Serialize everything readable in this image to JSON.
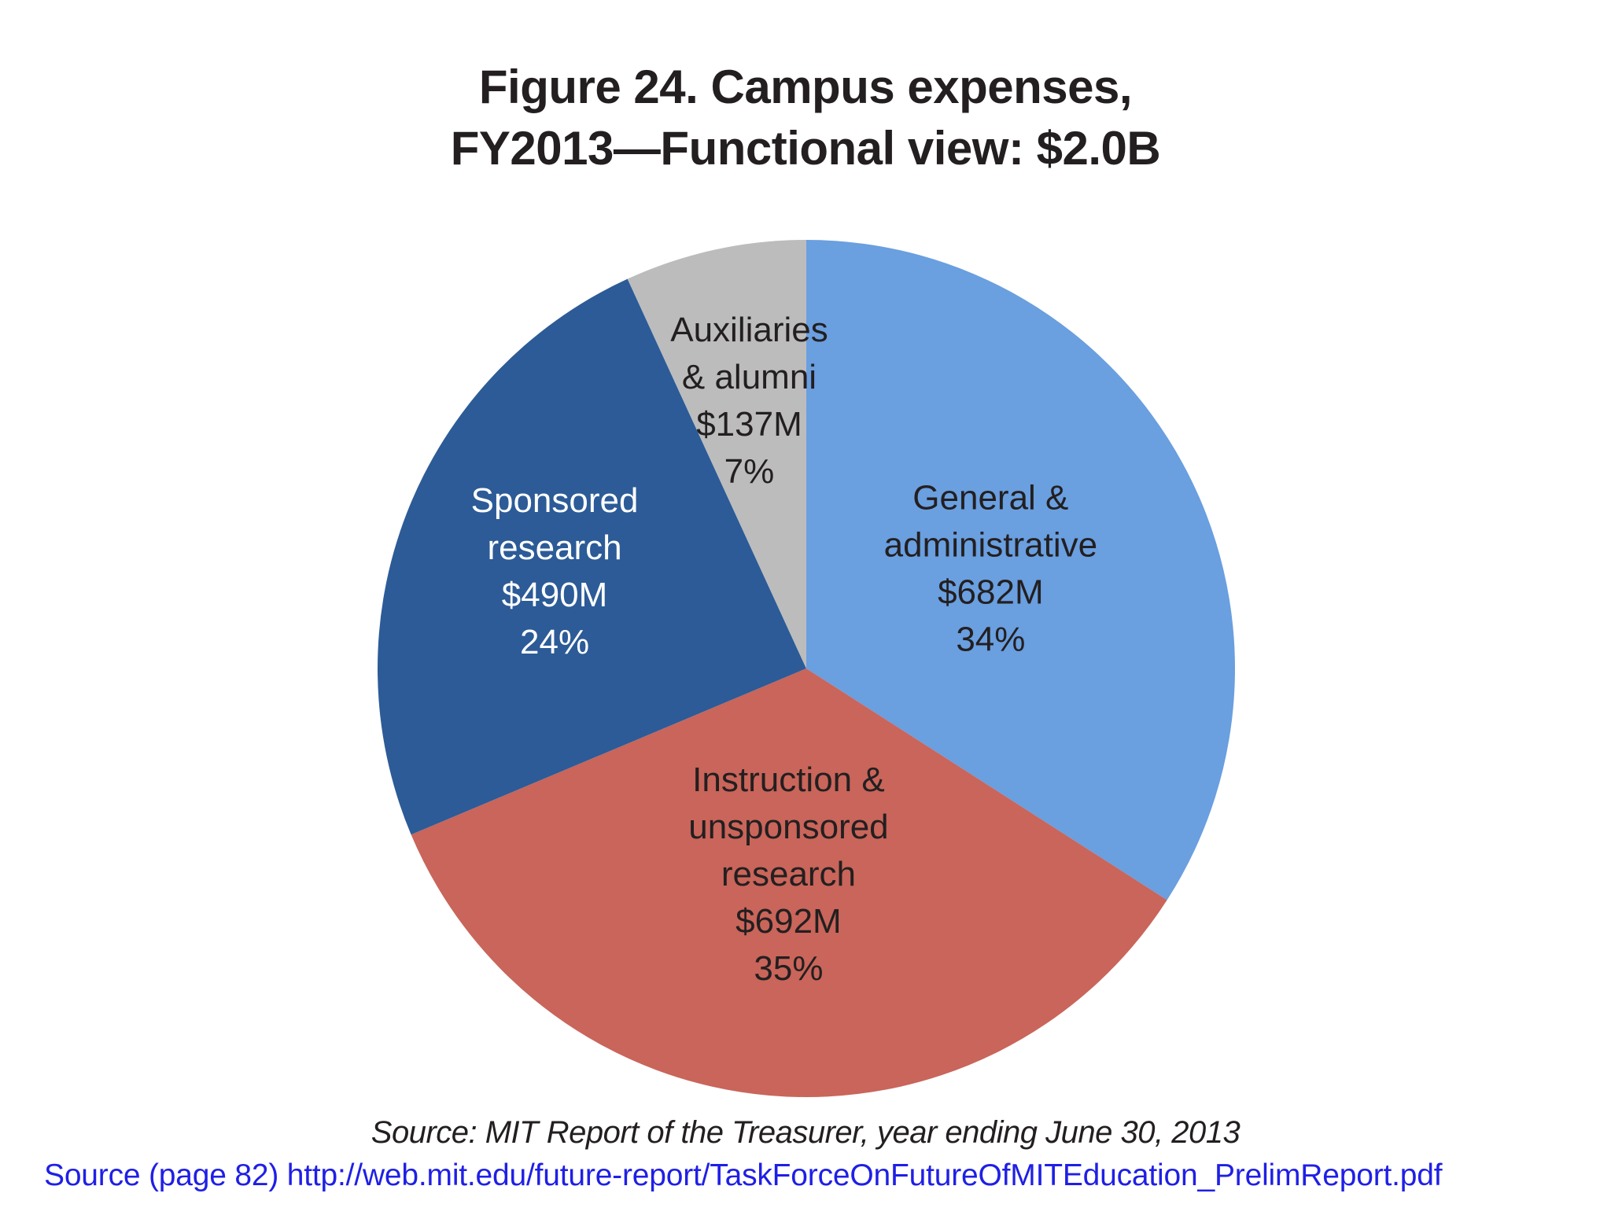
{
  "chart_data": {
    "type": "pie",
    "title_line1": "Figure 24. Campus expenses,",
    "title_line2": "FY2013—Functional view: $2.0B",
    "slices": [
      {
        "lines": [
          "General &",
          "administrative",
          "$682M",
          "34%"
        ],
        "value": 682,
        "percent": 34,
        "color": "#6a9fe0",
        "label_color": "#231f20"
      },
      {
        "lines": [
          "Instruction &",
          "unsponsored",
          "research",
          "$692M",
          "35%"
        ],
        "value": 692,
        "percent": 35,
        "color": "#c9655a",
        "label_color": "#231f20"
      },
      {
        "lines": [
          "Sponsored",
          "research",
          "$490M",
          "24%"
        ],
        "value": 490,
        "percent": 24,
        "color": "#2c5b97",
        "label_color": "#ffffff"
      },
      {
        "lines": [
          "Auxiliaries",
          "& alumni",
          "$137M",
          "7%"
        ],
        "value": 137,
        "percent": 7,
        "color": "#bcbcbc",
        "label_color": "#231f20"
      }
    ],
    "start": "12 o'clock",
    "direction": "clockwise",
    "legend": "none"
  },
  "footer": {
    "source_note": "Source: MIT Report of the Treasurer, year ending June 30, 2013",
    "source_link": "Source (page 82) http://web.mit.edu/future-report/TaskForceOnFutureOfMITEducation_PrelimReport.pdf"
  }
}
